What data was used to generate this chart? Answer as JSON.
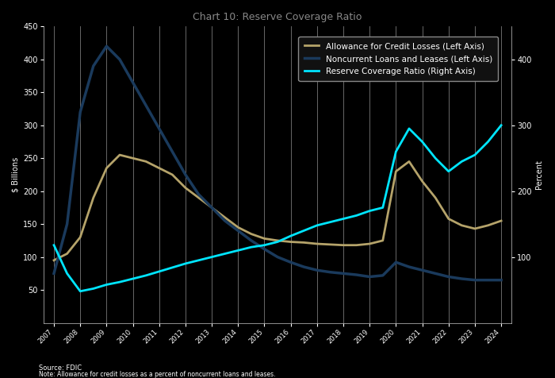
{
  "title": "Chart 10: Reserve Coverage Ratio",
  "left_ylabel": "$ Billions",
  "right_ylabel": "Percent",
  "allowance_color": "#b5a36a",
  "noncurrent_color": "#1a3a5c",
  "coverage_color": "#00e5ff",
  "grid_color": "#c8c8c8",
  "bg_color": "#000000",
  "text_color": "#ffffff",
  "legend_bg": "#111111",
  "legend_edge": "#888888",
  "source_text": "Source: FDIC",
  "footnote": "Note: Allowance for credit losses as a percent of noncurrent loans and leases.",
  "left_ylim": [
    0,
    450
  ],
  "right_ylim": [
    0,
    450
  ],
  "left_yticks": [
    50,
    100,
    150,
    200,
    250,
    300,
    350,
    400,
    450
  ],
  "right_yticks": [
    100,
    200,
    300,
    400
  ],
  "x_years": [
    2007.0,
    2007.5,
    2008.0,
    2008.5,
    2009.0,
    2009.5,
    2010.0,
    2010.5,
    2011.0,
    2011.5,
    2012.0,
    2012.5,
    2013.0,
    2013.5,
    2014.0,
    2014.5,
    2015.0,
    2015.5,
    2016.0,
    2016.5,
    2017.0,
    2017.5,
    2018.0,
    2018.5,
    2019.0,
    2019.5,
    2020.0,
    2020.5,
    2021.0,
    2021.5,
    2022.0,
    2022.5,
    2023.0,
    2023.5,
    2024.0
  ],
  "allowance_y": [
    95,
    105,
    130,
    190,
    235,
    255,
    250,
    245,
    235,
    225,
    205,
    190,
    175,
    160,
    145,
    135,
    128,
    125,
    123,
    122,
    120,
    119,
    118,
    118,
    120,
    125,
    230,
    245,
    215,
    190,
    158,
    148,
    143,
    148,
    155
  ],
  "noncurrent_y": [
    75,
    150,
    320,
    390,
    420,
    400,
    365,
    330,
    295,
    260,
    225,
    195,
    175,
    155,
    140,
    125,
    112,
    100,
    92,
    85,
    80,
    77,
    75,
    73,
    70,
    72,
    92,
    85,
    80,
    75,
    70,
    67,
    65,
    65,
    65
  ],
  "coverage_y": [
    118,
    75,
    48,
    52,
    58,
    62,
    67,
    72,
    78,
    84,
    90,
    95,
    100,
    105,
    110,
    115,
    118,
    123,
    132,
    140,
    148,
    153,
    158,
    163,
    170,
    175,
    260,
    295,
    275,
    250,
    230,
    245,
    255,
    275,
    300
  ],
  "xtick_years": [
    2007,
    2008,
    2009,
    2010,
    2011,
    2012,
    2013,
    2014,
    2015,
    2016,
    2017,
    2018,
    2019,
    2020,
    2021,
    2022,
    2023,
    2024
  ],
  "xlim": [
    2006.6,
    2024.4
  ]
}
